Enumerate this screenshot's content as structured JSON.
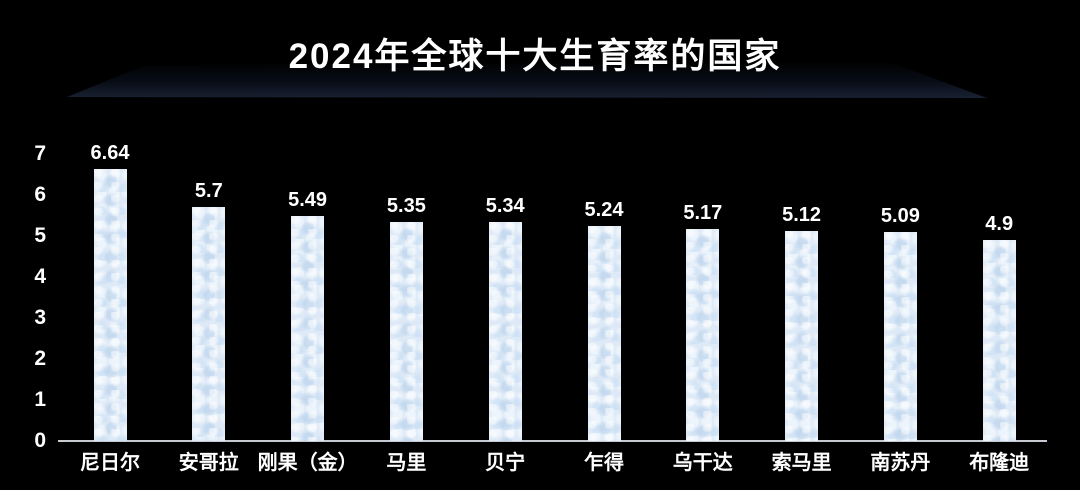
{
  "title": "2024年全球十大生育率的国家",
  "colors": {
    "background": "#000000",
    "bar_fill": "#dde9f6",
    "text": "#ffffff",
    "axis_line": "#c7cbd1",
    "stage_shadow": "#182132"
  },
  "chart_data": {
    "type": "bar",
    "title": "2024年全球十大生育率的国家",
    "categories": [
      "尼日尔",
      "安哥拉",
      "刚果（金）",
      "马里",
      "贝宁",
      "乍得",
      "乌干达",
      "索马里",
      "南苏丹",
      "布隆迪"
    ],
    "values": [
      6.64,
      5.7,
      5.49,
      5.35,
      5.34,
      5.24,
      5.17,
      5.12,
      5.09,
      4.9
    ],
    "value_labels": [
      "6.64",
      "5.7",
      "5.49",
      "5.35",
      "5.34",
      "5.24",
      "5.17",
      "5.12",
      "5.09",
      "4.9"
    ],
    "xlabel": "",
    "ylabel": "",
    "y_ticks": [
      0,
      1,
      2,
      3,
      4,
      5,
      6,
      7
    ],
    "ylim": [
      0,
      7
    ],
    "grid": false,
    "legend": false,
    "bar_orientation": "vertical",
    "value_labels_position": "above-bar"
  }
}
